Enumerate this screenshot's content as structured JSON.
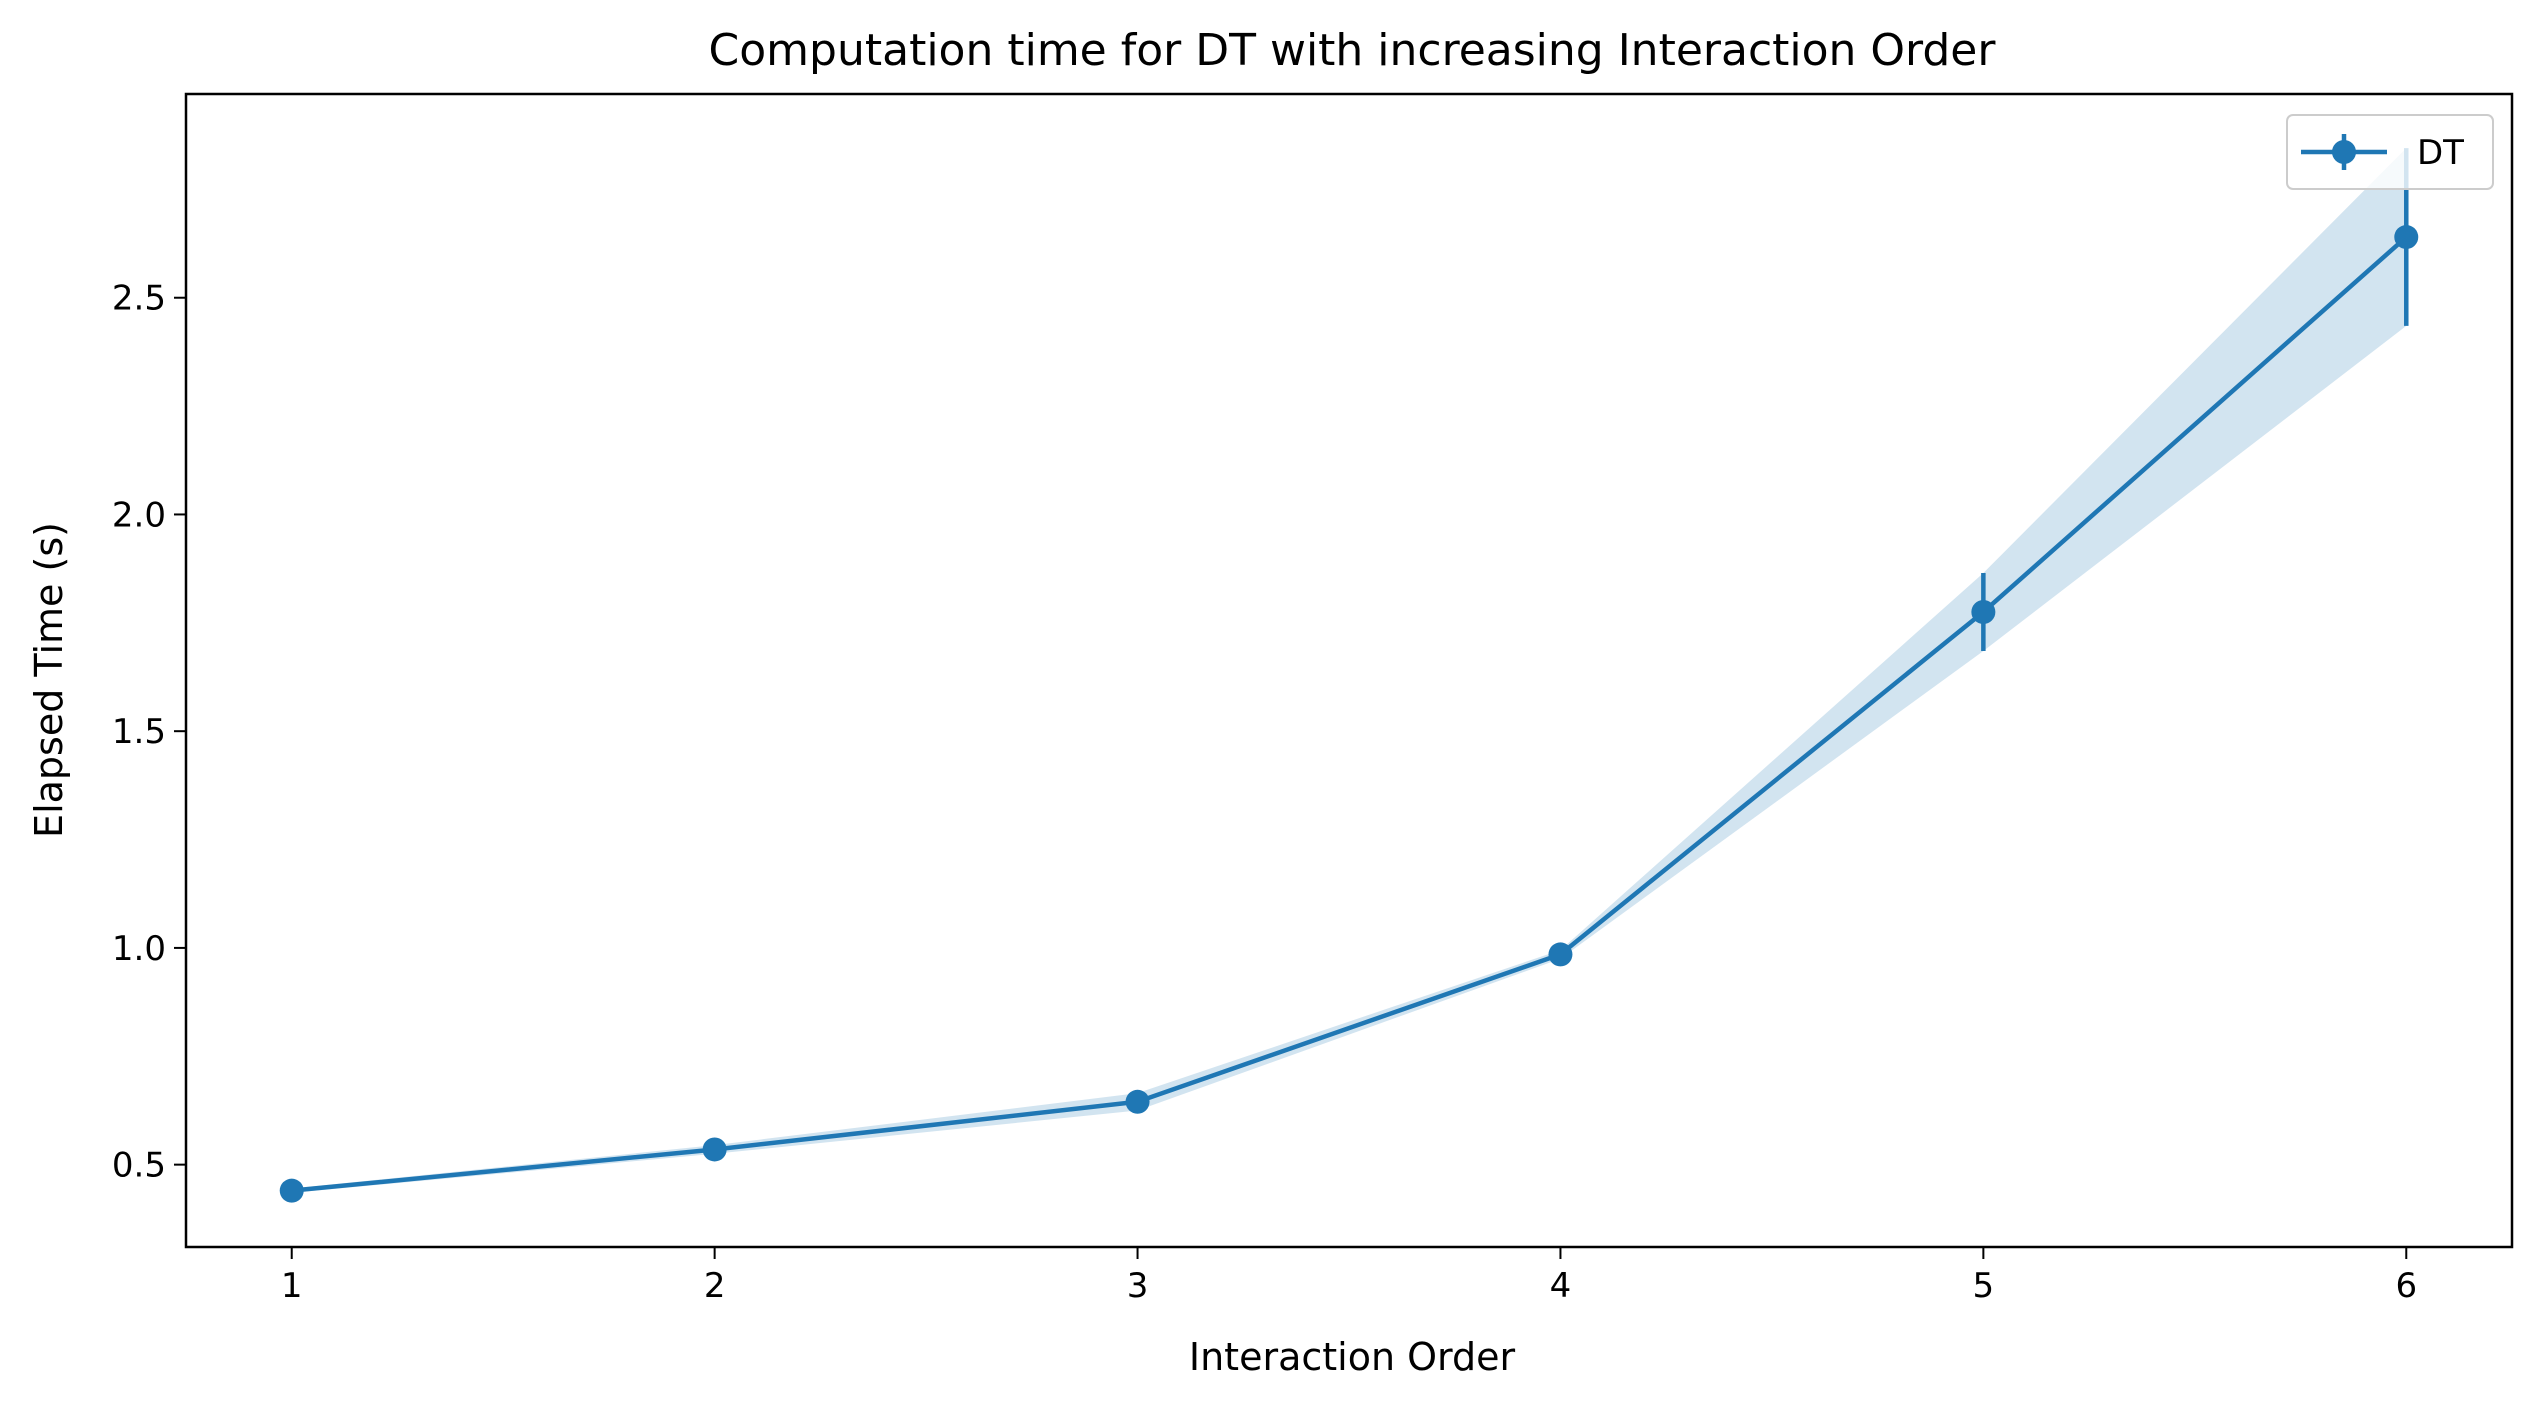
{
  "chart_data": {
    "type": "line",
    "title": "Computation time for DT with increasing Interaction Order",
    "xlabel": "Interaction Order",
    "ylabel": "Elapsed Time (s)",
    "x": [
      1,
      2,
      3,
      4,
      5,
      6
    ],
    "xticks": [
      "1",
      "2",
      "3",
      "4",
      "5",
      "6"
    ],
    "xlim": [
      0.75,
      6.25
    ],
    "yticks": [
      "0.5",
      "1.0",
      "1.5",
      "2.0",
      "2.5"
    ],
    "ytick_values": [
      0.5,
      1.0,
      1.5,
      2.0,
      2.5
    ],
    "ylim": [
      0.31,
      2.97
    ],
    "grid": false,
    "legend_position": "top-right",
    "series": [
      {
        "name": "DT",
        "color": "#1f77b4",
        "band_color": "#1f77b4",
        "values": [
          0.44,
          0.535,
          0.645,
          0.985,
          1.775,
          2.64
        ],
        "errors": [
          0.005,
          0.01,
          0.02,
          0.01,
          0.09,
          0.205
        ]
      }
    ]
  }
}
